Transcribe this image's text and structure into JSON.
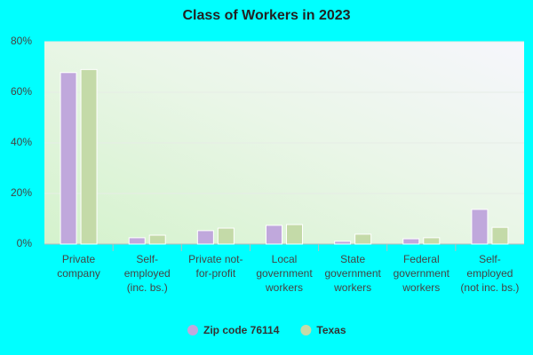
{
  "chart_data": {
    "type": "bar",
    "title": "Class of Workers in 2023",
    "categories": [
      "Private company",
      "Self-employed (inc. bs.)",
      "Private not-for-profit",
      "Local government workers",
      "State government workers",
      "Federal government workers",
      "Self-employed (not inc. bs.)"
    ],
    "series": [
      {
        "name": "Zip code 76114",
        "color": "#c0a8dc",
        "values": [
          67.8,
          2.5,
          5.3,
          7.4,
          1.1,
          2.1,
          13.7
        ]
      },
      {
        "name": "Texas",
        "color": "#c4daa8",
        "values": [
          69,
          3.5,
          6.3,
          7.7,
          3.9,
          2.5,
          6.6
        ]
      }
    ],
    "ylim": [
      0,
      80
    ],
    "yticks": [
      {
        "value": 0,
        "label": "0%"
      },
      {
        "value": 20,
        "label": "20%"
      },
      {
        "value": 40,
        "label": "40%"
      },
      {
        "value": 60,
        "label": "60%"
      },
      {
        "value": 80,
        "label": "80%"
      }
    ],
    "grid": true
  }
}
